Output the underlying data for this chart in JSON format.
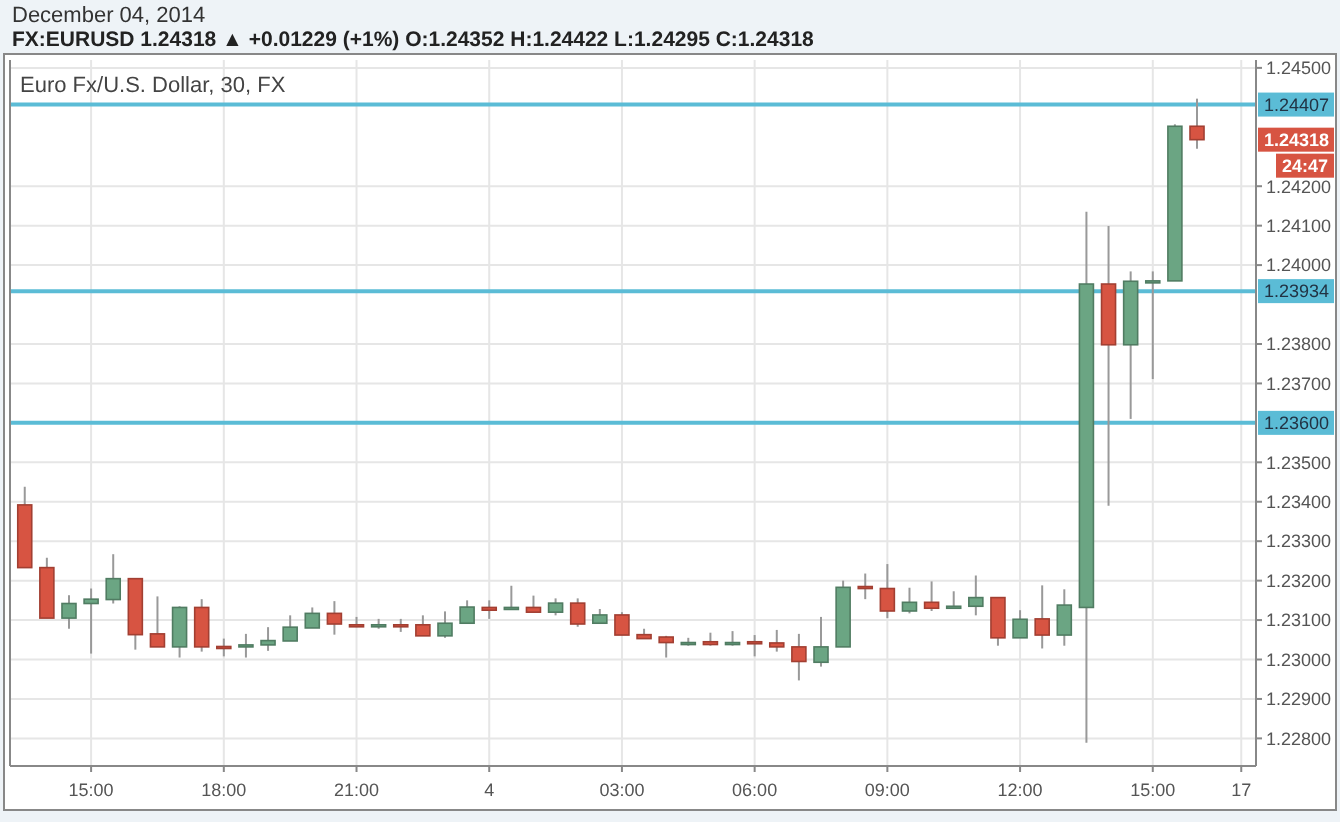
{
  "chart_data": {
    "type": "candlestick",
    "title": "Euro Fx/U.S. Dollar, 30, FX",
    "subtitle": "FX:EURUSD 1.24318 ▲ +0.01229 (+1%) O:1.24352 H:1.24422 L:1.24295 C:1.24318",
    "annotations": [
      "December 04, 2014",
      "1.24318",
      "24:47"
    ],
    "x": [
      "2014-12-03T13:30",
      "2014-12-03T14:00",
      "2014-12-03T14:30",
      "2014-12-03T15:00",
      "2014-12-03T15:30",
      "2014-12-03T16:00",
      "2014-12-03T16:30",
      "2014-12-03T17:00",
      "2014-12-03T17:30",
      "2014-12-03T18:00",
      "2014-12-03T18:30",
      "2014-12-03T19:00",
      "2014-12-03T19:30",
      "2014-12-03T20:00",
      "2014-12-03T20:30",
      "2014-12-03T21:00",
      "2014-12-03T21:30",
      "2014-12-03T22:00",
      "2014-12-03T22:30",
      "2014-12-03T23:00",
      "2014-12-03T23:30",
      "2014-12-04T00:00",
      "2014-12-04T00:30",
      "2014-12-04T01:00",
      "2014-12-04T01:30",
      "2014-12-04T02:00",
      "2014-12-04T02:30",
      "2014-12-04T03:00",
      "2014-12-04T03:30",
      "2014-12-04T04:00",
      "2014-12-04T04:30",
      "2014-12-04T05:00",
      "2014-12-04T05:30",
      "2014-12-04T06:00",
      "2014-12-04T06:30",
      "2014-12-04T07:00",
      "2014-12-04T07:30",
      "2014-12-04T08:00",
      "2014-12-04T08:30",
      "2014-12-04T09:00",
      "2014-12-04T09:30",
      "2014-12-04T10:00",
      "2014-12-04T10:30",
      "2014-12-04T11:00",
      "2014-12-04T11:30",
      "2014-12-04T12:00",
      "2014-12-04T12:30",
      "2014-12-04T13:00",
      "2014-12-04T13:30",
      "2014-12-04T14:00",
      "2014-12-04T14:30",
      "2014-12-04T15:00",
      "2014-12-04T15:30",
      "2014-12-04T16:00"
    ],
    "ohlc": [
      [
        1.23392,
        1.23438,
        1.23233,
        1.23233
      ],
      [
        1.23233,
        1.23258,
        1.23105,
        1.23105
      ],
      [
        1.23105,
        1.23163,
        1.23078,
        1.23142
      ],
      [
        1.23142,
        1.2318,
        1.23015,
        1.23153
      ],
      [
        1.23152,
        1.23267,
        1.23142,
        1.23205
      ],
      [
        1.23205,
        1.23205,
        1.23025,
        1.23063
      ],
      [
        1.23065,
        1.2316,
        1.23032,
        1.23032
      ],
      [
        1.23032,
        1.23135,
        1.23005,
        1.23132
      ],
      [
        1.23132,
        1.23153,
        1.2302,
        1.23032
      ],
      [
        1.23033,
        1.23053,
        1.23008,
        1.23032
      ],
      [
        1.23032,
        1.23065,
        1.23005,
        1.23037
      ],
      [
        1.23037,
        1.23082,
        1.23022,
        1.23048
      ],
      [
        1.23047,
        1.23112,
        1.23047,
        1.23082
      ],
      [
        1.2308,
        1.23132,
        1.2308,
        1.23117
      ],
      [
        1.23117,
        1.23148,
        1.23063,
        1.2309
      ],
      [
        1.23088,
        1.23108,
        1.23082,
        1.23083
      ],
      [
        1.23083,
        1.23103,
        1.23078,
        1.23088
      ],
      [
        1.23088,
        1.23103,
        1.2307,
        1.23085
      ],
      [
        1.23088,
        1.23112,
        1.2306,
        1.2306
      ],
      [
        1.2306,
        1.23122,
        1.23055,
        1.23092
      ],
      [
        1.23092,
        1.2315,
        1.23092,
        1.23133
      ],
      [
        1.23132,
        1.2315,
        1.23103,
        1.23125
      ],
      [
        1.23127,
        1.23187,
        1.23127,
        1.23132
      ],
      [
        1.23132,
        1.23162,
        1.2312,
        1.2312
      ],
      [
        1.2312,
        1.23155,
        1.23112,
        1.23143
      ],
      [
        1.23143,
        1.23155,
        1.23083,
        1.2309
      ],
      [
        1.23092,
        1.23128,
        1.23092,
        1.23113
      ],
      [
        1.23113,
        1.2312,
        1.23062,
        1.23062
      ],
      [
        1.23063,
        1.23078,
        1.23053,
        1.23053
      ],
      [
        1.23057,
        1.2306,
        1.23005,
        1.23043
      ],
      [
        1.2304,
        1.23055,
        1.23035,
        1.23043
      ],
      [
        1.23045,
        1.23068,
        1.23035,
        1.23038
      ],
      [
        1.23038,
        1.23072,
        1.23035,
        1.23043
      ],
      [
        1.23045,
        1.23062,
        1.23008,
        1.2304
      ],
      [
        1.23042,
        1.23075,
        1.2302,
        1.23032
      ],
      [
        1.23032,
        1.23065,
        1.22947,
        1.22995
      ],
      [
        1.22993,
        1.23108,
        1.22982,
        1.23032
      ],
      [
        1.23032,
        1.232,
        1.23032,
        1.23183
      ],
      [
        1.23185,
        1.23218,
        1.23153,
        1.2318
      ],
      [
        1.2318,
        1.23242,
        1.23105,
        1.23123
      ],
      [
        1.23123,
        1.23182,
        1.23117,
        1.23145
      ],
      [
        1.23145,
        1.23198,
        1.23123,
        1.2313
      ],
      [
        1.2313,
        1.23173,
        1.2313,
        1.23135
      ],
      [
        1.23135,
        1.23213,
        1.23112,
        1.23157
      ],
      [
        1.23157,
        1.23157,
        1.23035,
        1.23055
      ],
      [
        1.23055,
        1.23125,
        1.23055,
        1.23102
      ],
      [
        1.23103,
        1.23188,
        1.23028,
        1.23062
      ],
      [
        1.23062,
        1.23178,
        1.23035,
        1.23138
      ],
      [
        1.23132,
        1.24135,
        1.22789,
        1.23952
      ],
      [
        1.23952,
        1.24099,
        1.2339,
        1.23798
      ],
      [
        1.23798,
        1.23984,
        1.2361,
        1.23959
      ],
      [
        1.23957,
        1.23984,
        1.23711,
        1.2396
      ],
      [
        1.2396,
        1.24357,
        1.2396,
        1.24352
      ],
      [
        1.24352,
        1.24422,
        1.24295,
        1.24318
      ]
    ],
    "colors": [
      "#d75442",
      "#d75442",
      "#6ba583",
      "#6ba583",
      "#6ba583",
      "#d75442",
      "#d75442",
      "#6ba583",
      "#d75442",
      "#d75442",
      "#6ba583",
      "#6ba583",
      "#6ba583",
      "#6ba583",
      "#d75442",
      "#d75442",
      "#6ba583",
      "#d75442",
      "#d75442",
      "#6ba583",
      "#6ba583",
      "#d75442",
      "#6ba583",
      "#d75442",
      "#6ba583",
      "#d75442",
      "#6ba583",
      "#d75442",
      "#d75442",
      "#d75442",
      "#6ba583",
      "#d75442",
      "#6ba583",
      "#d75442",
      "#d75442",
      "#d75442",
      "#6ba583",
      "#6ba583",
      "#d75442",
      "#d75442",
      "#6ba583",
      "#d75442",
      "#6ba583",
      "#6ba583",
      "#d75442",
      "#6ba583",
      "#d75442",
      "#6ba583",
      "#6ba583",
      "#d75442",
      "#6ba583",
      "#6ba583",
      "#6ba583",
      "#d75442"
    ],
    "xlim": [
      "2014-12-03T13:10",
      "2014-12-04T17:20"
    ],
    "xticks": [
      {
        "value": "2014-12-03T15:00",
        "label": "15:00"
      },
      {
        "value": "2014-12-03T18:00",
        "label": "18:00"
      },
      {
        "value": "2014-12-03T21:00",
        "label": "21:00"
      },
      {
        "value": "2014-12-04T00:00",
        "label": "4"
      },
      {
        "value": "2014-12-04T03:00",
        "label": "03:00"
      },
      {
        "value": "2014-12-04T06:00",
        "label": "06:00"
      },
      {
        "value": "2014-12-04T09:00",
        "label": "09:00"
      },
      {
        "value": "2014-12-04T12:00",
        "label": "12:00"
      },
      {
        "value": "2014-12-04T15:00",
        "label": "15:00"
      },
      {
        "value": "2014-12-04T17:00",
        "label": "17"
      }
    ],
    "ylim": [
      1.2273,
      1.2452
    ],
    "yticks": [
      {
        "value": 1.228,
        "label": "1.22800"
      },
      {
        "value": 1.229,
        "label": "1.22900"
      },
      {
        "value": 1.23,
        "label": "1.23000"
      },
      {
        "value": 1.231,
        "label": "1.23100"
      },
      {
        "value": 1.232,
        "label": "1.23200"
      },
      {
        "value": 1.233,
        "label": "1.23300"
      },
      {
        "value": 1.234,
        "label": "1.23400"
      },
      {
        "value": 1.235,
        "label": "1.23500"
      },
      {
        "value": 1.237,
        "label": "1.23700"
      },
      {
        "value": 1.238,
        "label": "1.23800"
      },
      {
        "value": 1.24,
        "label": "1.24000"
      },
      {
        "value": 1.241,
        "label": "1.24100"
      },
      {
        "value": 1.242,
        "label": "1.24200"
      },
      {
        "value": 1.245,
        "label": "1.24500"
      }
    ],
    "ref_lines": [
      {
        "axis": "y",
        "value": 1.24407,
        "label": "1.24407",
        "color": "#5bbcd6"
      },
      {
        "axis": "y",
        "value": 1.23934,
        "label": "1.23934",
        "color": "#5bbcd6"
      },
      {
        "axis": "y",
        "value": 1.236,
        "label": "1.23600",
        "color": "#5bbcd6"
      }
    ],
    "grid": true
  }
}
